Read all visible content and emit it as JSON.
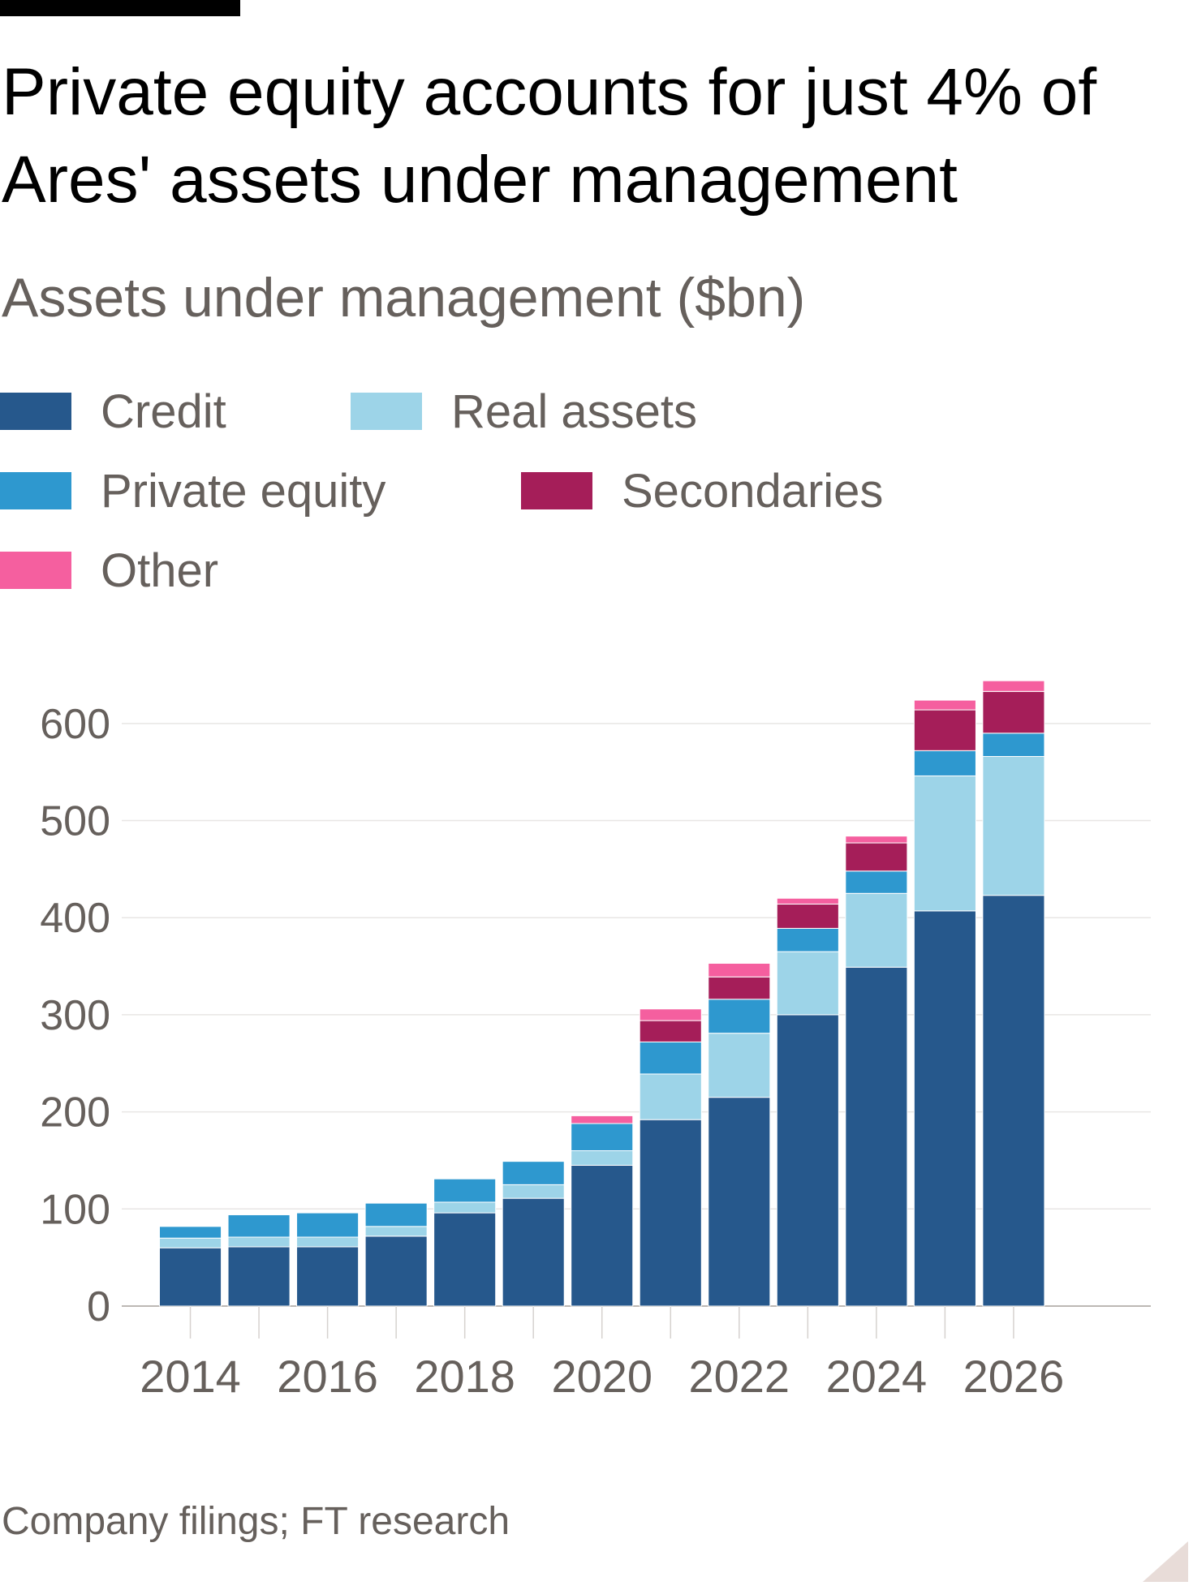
{
  "chart_data": {
    "type": "bar",
    "stacked": true,
    "title": "Private equity accounts for just 4% of Ares' assets under management",
    "subtitle": "Assets under management ($bn)",
    "source": "Company filings; FT research",
    "x": [
      2014,
      2015,
      2016,
      2017,
      2018,
      2019,
      2020,
      2021,
      2022,
      2023,
      2024,
      2025,
      2026
    ],
    "x_tick_labels": [
      "2014",
      "2016",
      "2018",
      "2020",
      "2022",
      "2024",
      "2026"
    ],
    "x_ticks": [
      2014,
      2016,
      2018,
      2020,
      2022,
      2024,
      2026
    ],
    "y_ticks": [
      0,
      100,
      200,
      300,
      400,
      500,
      600
    ],
    "y_tick_labels": [
      "0",
      "100",
      "200",
      "300",
      "400",
      "500",
      "600"
    ],
    "ylim": [
      0,
      660
    ],
    "xlim": [
      2013,
      2028
    ],
    "grid": true,
    "legend_position": "top-left",
    "series": [
      {
        "name": "Credit",
        "color": "#26588c",
        "values": [
          60,
          61,
          61,
          72,
          96,
          111,
          145,
          192,
          215,
          300,
          349,
          407,
          423
        ]
      },
      {
        "name": "Real assets",
        "color": "#9dd4e8",
        "values": [
          10,
          10,
          10,
          10,
          11,
          14,
          15,
          47,
          66,
          65,
          76,
          139,
          143
        ]
      },
      {
        "name": "Private equity",
        "color": "#2e98cf",
        "values": [
          12,
          23,
          25,
          24,
          24,
          24,
          28,
          33,
          35,
          24,
          23,
          26,
          24
        ]
      },
      {
        "name": "Secondaries",
        "color": "#a51e59",
        "values": [
          0,
          0,
          0,
          0,
          0,
          0,
          0,
          22,
          23,
          25,
          29,
          42,
          43
        ]
      },
      {
        "name": "Other",
        "color": "#f55f9f",
        "values": [
          0,
          0,
          0,
          0,
          0,
          0,
          8,
          12,
          14,
          6,
          7,
          10,
          11
        ]
      }
    ],
    "legend_order": [
      "Credit",
      "Real assets",
      "Private equity",
      "Secondaries",
      "Other"
    ]
  }
}
